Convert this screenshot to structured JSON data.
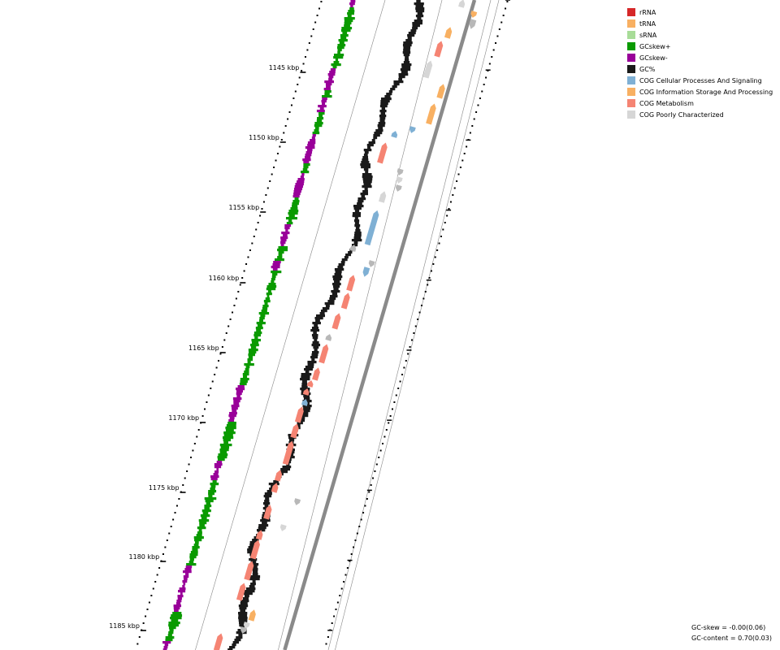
{
  "legend": [
    {
      "label": "rRNA",
      "color": "#d62728"
    },
    {
      "label": "tRNA",
      "color": "#f8b062"
    },
    {
      "label": "sRNA",
      "color": "#a8dc98"
    },
    {
      "label": "GCskew+",
      "color": "#0a9a00"
    },
    {
      "label": "GCskew-",
      "color": "#990099"
    },
    {
      "label": "GC%",
      "color": "#1a1a1a"
    },
    {
      "label": "COG Cellular Processes And Signaling",
      "color": "#7fb0d4"
    },
    {
      "label": "COG Information Storage And Processing",
      "color": "#f8b062"
    },
    {
      "label": "COG Metabolism",
      "color": "#f58473"
    },
    {
      "label": "COG Poorly Characterized",
      "color": "#d6d6d6"
    }
  ],
  "ticks": [
    {
      "label": "1145 kbp"
    },
    {
      "label": "1150 kbp"
    },
    {
      "label": "1155 kbp"
    },
    {
      "label": "1160 kbp"
    },
    {
      "label": "1165 kbp"
    },
    {
      "label": "1170 kbp"
    },
    {
      "label": "1175 kbp"
    },
    {
      "label": "1180 kbp"
    },
    {
      "label": "1185 kbp"
    }
  ],
  "stats": {
    "gc_skew": "GC-skew = -0.00(0.06)",
    "gc_content": "GC-content = 0.70(0.03)"
  },
  "colors": {
    "gcskew_pos": "#0a9a00",
    "gcskew_neg": "#990099",
    "gc": "#1a1a1a",
    "backbone": "#8a8a8a",
    "cog_cell": "#7fb0d4",
    "cog_info": "#f8b062",
    "cog_metab": "#f58473",
    "cog_poor": "#d6d6d6",
    "hypothetical": "#b8b8b8"
  }
}
